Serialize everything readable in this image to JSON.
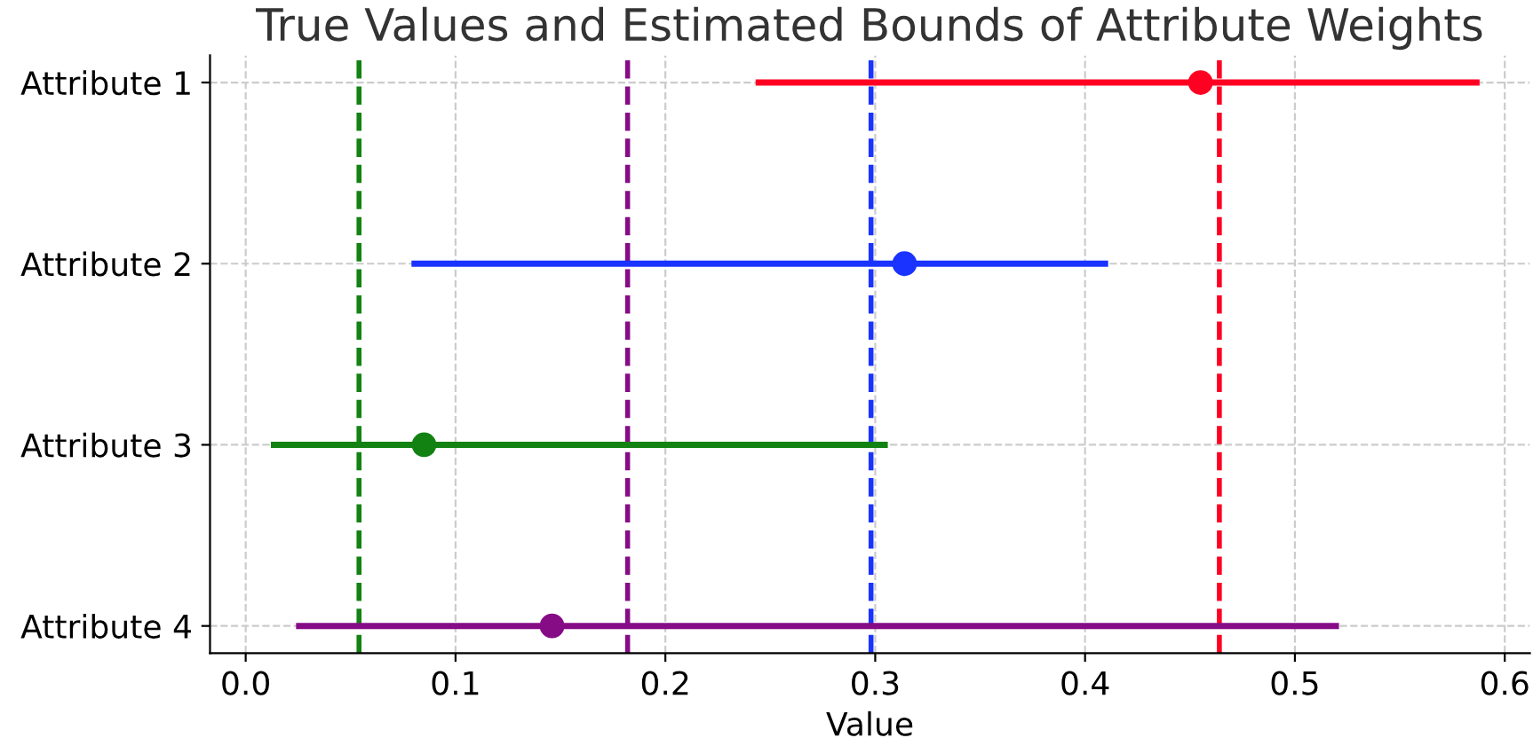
{
  "chart_data": {
    "type": "scatter",
    "orientation": "horizontal",
    "title": "True Values and Estimated Bounds of Attribute Weights",
    "xlabel": "Value",
    "categories": [
      "Attribute 1",
      "Attribute 2",
      "Attribute 3",
      "Attribute 4"
    ],
    "values": [
      0.455,
      0.314,
      0.085,
      0.146
    ],
    "errors": [
      [
        0.243,
        0.588
      ],
      [
        0.079,
        0.411
      ],
      [
        0.012,
        0.306
      ],
      [
        0.024,
        0.521
      ]
    ],
    "colors": [
      "#ff0022",
      "#1a33ff",
      "#128212",
      "#860c86"
    ],
    "marker": "circle",
    "xlim": [
      -0.017,
      0.612
    ],
    "xticks": [
      {
        "value": 0,
        "label": "0.0"
      },
      0.1,
      0.2,
      0.3,
      0.4,
      0.5,
      0.6
    ],
    "ref_lines": [
      {
        "axis": "x",
        "value": 0.054,
        "color": "#128212",
        "line_style": "dashed"
      },
      {
        "axis": "x",
        "value": 0.182,
        "color": "#860c86",
        "line_style": "dashed"
      },
      {
        "axis": "x",
        "value": 0.298,
        "color": "#1a33ff",
        "line_style": "dashed"
      },
      {
        "axis": "x",
        "value": 0.464,
        "color": "#ff0022",
        "line_style": "dashed"
      }
    ],
    "grid": true
  }
}
